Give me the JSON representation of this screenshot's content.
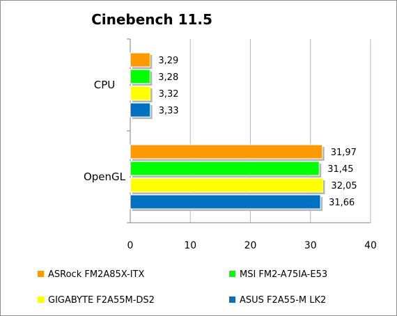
{
  "chart_data": {
    "type": "bar",
    "orientation": "horizontal",
    "title": "Cinebench 11.5",
    "categories": [
      "CPU",
      "OpenGL"
    ],
    "series": [
      {
        "name": "ASRock FM2A85X-ITX",
        "color": "#FF9900",
        "values": [
          3.29,
          31.97
        ],
        "labels": [
          "3,29",
          "31,97"
        ]
      },
      {
        "name": "MSI FM2-A75IA-E53",
        "color": "#00FF00",
        "values": [
          3.28,
          31.45
        ],
        "labels": [
          "3,28",
          "31,45"
        ]
      },
      {
        "name": "GIGABYTE F2A55M-DS2",
        "color": "#FFFF00",
        "values": [
          3.32,
          32.05
        ],
        "labels": [
          "3,32",
          "32,05"
        ]
      },
      {
        "name": "ASUS F2A55-M LK2",
        "color": "#0070C0",
        "values": [
          3.33,
          31.66
        ],
        "labels": [
          "3,33",
          "31,66"
        ]
      }
    ],
    "xlim": [
      0,
      40
    ],
    "xticks": [
      "0",
      "10",
      "20",
      "30",
      "40"
    ],
    "grid": true,
    "legend_position": "bottom"
  }
}
